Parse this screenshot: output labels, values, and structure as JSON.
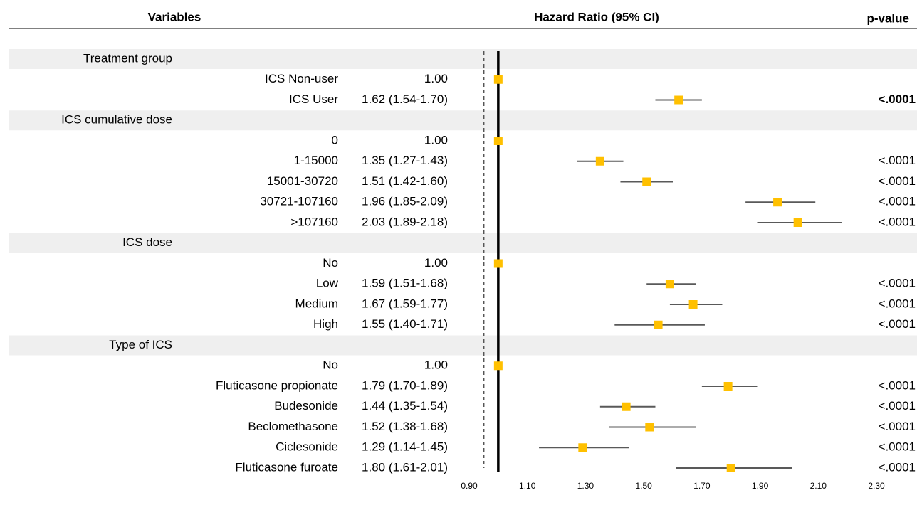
{
  "chart_data": {
    "type": "forest",
    "headers": {
      "variables": "Variables",
      "estimate": "Hazard Ratio (95% CI)",
      "p": "p-value"
    },
    "xlim": [
      0.9,
      2.3
    ],
    "xticks": [
      {
        "value": 0.9,
        "label": "0.90"
      },
      {
        "value": 1.1,
        "label": "1.10"
      },
      {
        "value": 1.3,
        "label": "1.30"
      },
      {
        "value": 1.5,
        "label": "1.50"
      },
      {
        "value": 1.7,
        "label": "1.70"
      },
      {
        "value": 1.9,
        "label": "1.90"
      },
      {
        "value": 2.1,
        "label": "2.10"
      },
      {
        "value": 2.3,
        "label": "2.30"
      }
    ],
    "ref_line": 1,
    "dashed_line": 0.95,
    "marker_color": "#ffc000",
    "ci_color": "#595959",
    "band_color": "#efefef",
    "groups": [
      {
        "name": "Treatment group",
        "rows": [
          {
            "label": "ICS Non-user",
            "hr": 1,
            "value_label": "1.00"
          },
          {
            "label": "ICS User",
            "hr": 1.62,
            "lo": 1.54,
            "hi": 1.7,
            "value_label": "1.62 (1.54-1.70)",
            "p": "<.0001"
          }
        ]
      },
      {
        "name": "ICS cumulative dose",
        "rows": [
          {
            "label": "0",
            "hr": 1,
            "value_label": "1.00"
          },
          {
            "label": "1-15000",
            "hr": 1.35,
            "lo": 1.27,
            "hi": 1.43,
            "value_label": "1.35 (1.27-1.43)",
            "p": "<.0001"
          },
          {
            "label": "15001-30720",
            "hr": 1.51,
            "lo": 1.42,
            "hi": 1.6,
            "value_label": "1.51 (1.42-1.60)",
            "p": "<.0001"
          },
          {
            "label": "30721-107160",
            "hr": 1.96,
            "lo": 1.85,
            "hi": 2.09,
            "value_label": "1.96 (1.85-2.09)",
            "p": "<.0001"
          },
          {
            "label": ">107160",
            "hr": 2.03,
            "lo": 1.89,
            "hi": 2.18,
            "value_label": "2.03 (1.89-2.18)",
            "p": "<.0001"
          }
        ]
      },
      {
        "name": "ICS dose",
        "rows": [
          {
            "label": "No",
            "hr": 1,
            "value_label": "1.00"
          },
          {
            "label": "Low",
            "hr": 1.59,
            "lo": 1.51,
            "hi": 1.68,
            "value_label": "1.59 (1.51-1.68)",
            "p": "<.0001"
          },
          {
            "label": "Medium",
            "hr": 1.67,
            "lo": 1.59,
            "hi": 1.77,
            "value_label": "1.67 (1.59-1.77)",
            "p": "<.0001"
          },
          {
            "label": "High",
            "hr": 1.55,
            "lo": 1.4,
            "hi": 1.71,
            "value_label": "1.55 (1.40-1.71)",
            "p": "<.0001"
          }
        ]
      },
      {
        "name": "Type of ICS",
        "rows": [
          {
            "label": "No",
            "hr": 1,
            "value_label": "1.00"
          },
          {
            "label": "Fluticasone propionate",
            "hr": 1.79,
            "lo": 1.7,
            "hi": 1.89,
            "value_label": "1.79 (1.70-1.89)",
            "p": "<.0001"
          },
          {
            "label": "Budesonide",
            "hr": 1.44,
            "lo": 1.35,
            "hi": 1.54,
            "value_label": "1.44 (1.35-1.54)",
            "p": "<.0001"
          },
          {
            "label": "Beclomethasone",
            "hr": 1.52,
            "lo": 1.38,
            "hi": 1.68,
            "value_label": "1.52 (1.38-1.68)",
            "p": "<.0001"
          },
          {
            "label": "Ciclesonide",
            "hr": 1.29,
            "lo": 1.14,
            "hi": 1.45,
            "value_label": "1.29 (1.14-1.45)",
            "p": "<.0001"
          },
          {
            "label": "Fluticasone furoate",
            "hr": 1.8,
            "lo": 1.61,
            "hi": 2.01,
            "value_label": "1.80 (1.61-2.01)",
            "p": "<.0001"
          }
        ]
      }
    ]
  }
}
